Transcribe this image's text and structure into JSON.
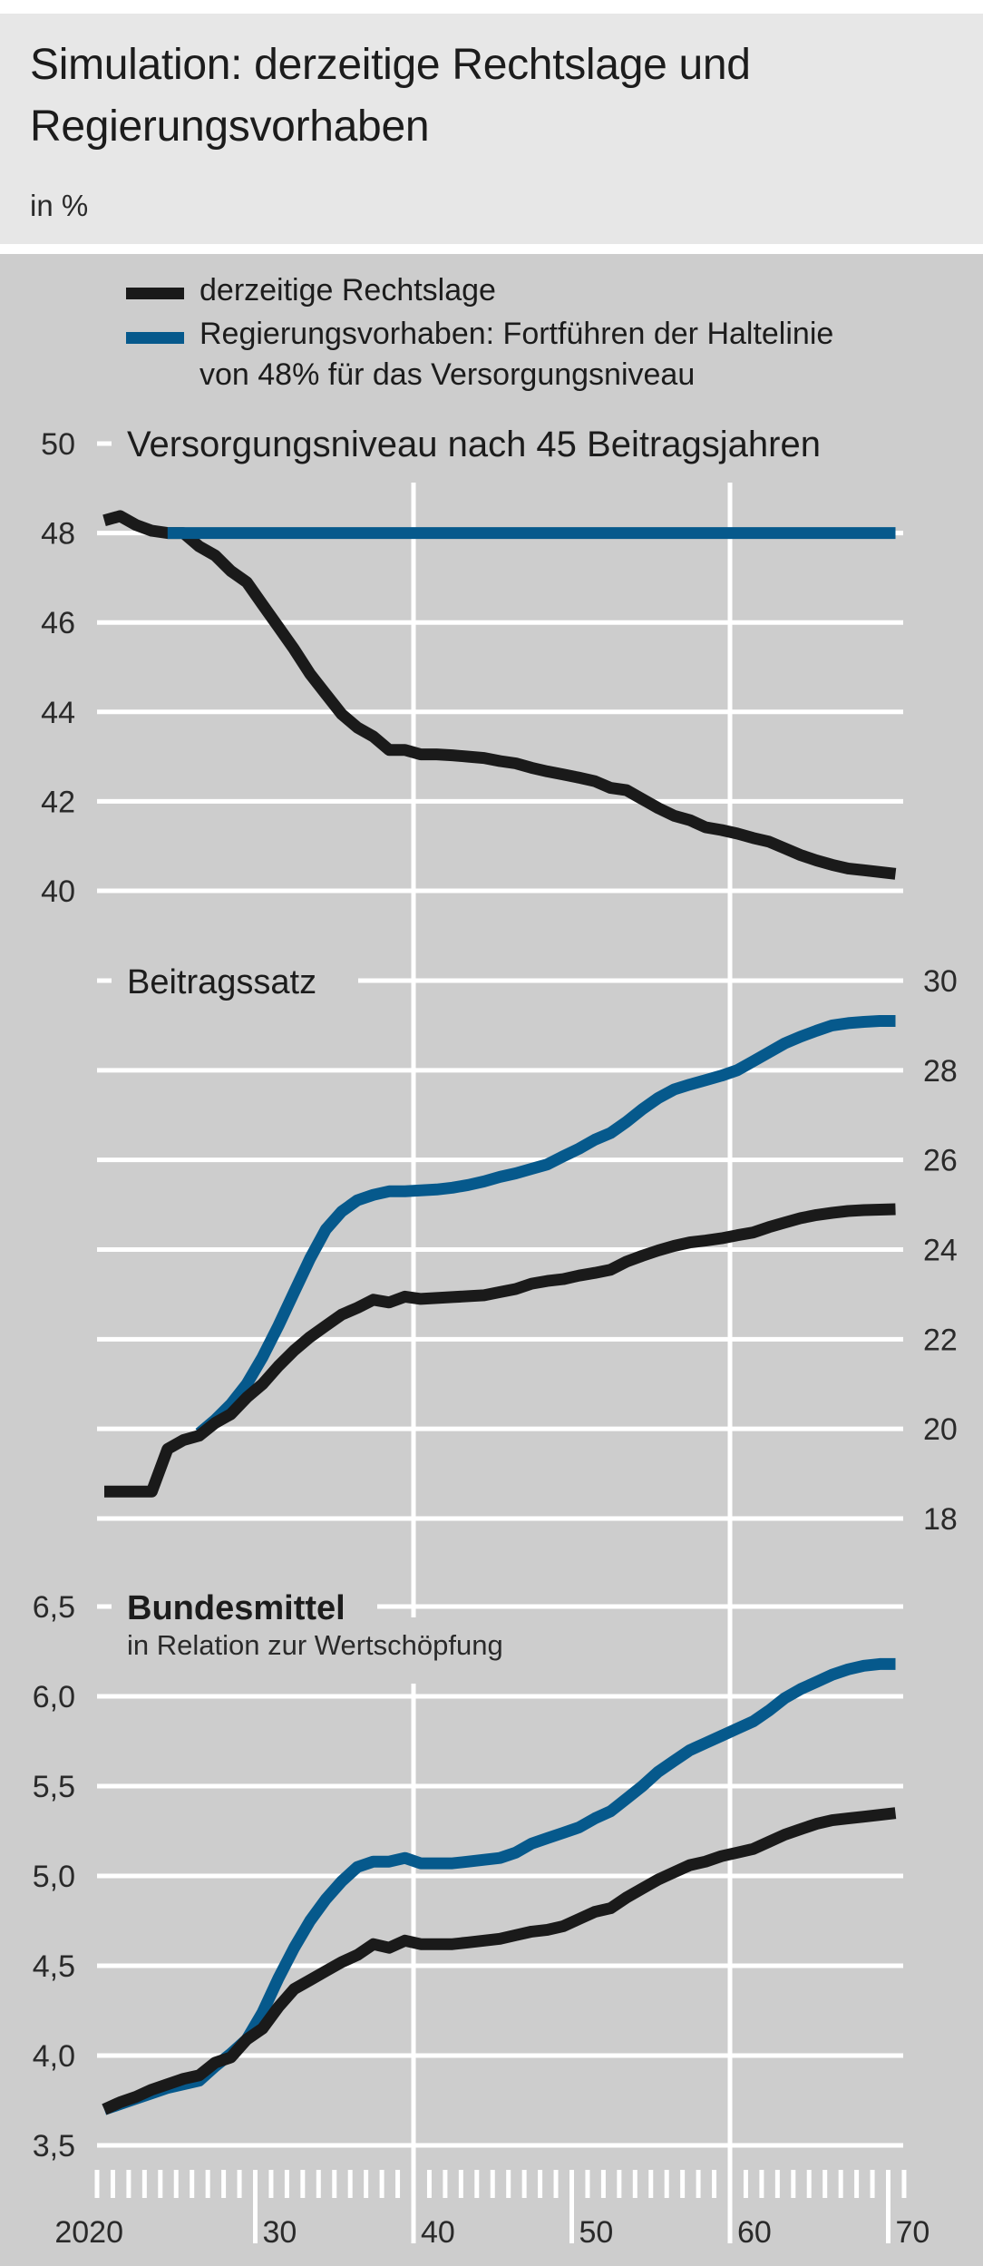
{
  "header": {
    "title": "Simulation: derzeitige Rechtslage und Regierungsvorhaben",
    "unit": "in %"
  },
  "legend": [
    {
      "label": "derzeitige Rechtslage",
      "color": "#1a1a1a"
    },
    {
      "label_line1": "Regierungsvorhaben: Fortführen der Haltelinie",
      "label_line2": "von 48% für das Versorgungsniveau",
      "color": "#06598c"
    }
  ],
  "colors": {
    "current": "#1a1a1a",
    "plan": "#06598c",
    "grid": "#ffffff",
    "plot_bg": "#cdcdcd",
    "header_bg": "#e7e7e7"
  },
  "chart_data": [
    {
      "type": "line",
      "title": "Versorgungsniveau nach 45 Beitragsjahren",
      "ylim": [
        40,
        50
      ],
      "yticks": [
        "40",
        "42",
        "44",
        "46",
        "48",
        "50"
      ],
      "ytick_values": [
        40,
        42,
        44,
        46,
        48,
        50
      ],
      "yaxis_side": "left",
      "x_start": 2020,
      "series": [
        {
          "name": "derzeitige Rechtslage",
          "key": "current",
          "start": 2020,
          "values": [
            48.28,
            48.38,
            48.18,
            48.05,
            48.0,
            48.0,
            47.7,
            47.5,
            47.15,
            46.9,
            46.4,
            45.9,
            45.4,
            44.85,
            44.4,
            43.95,
            43.65,
            43.45,
            43.15,
            43.15,
            43.05,
            43.05,
            43.03,
            43.0,
            42.97,
            42.9,
            42.85,
            42.75,
            42.67,
            42.6,
            42.53,
            42.45,
            42.3,
            42.25,
            42.05,
            41.85,
            41.68,
            41.58,
            41.42,
            41.36,
            41.28,
            41.18,
            41.1,
            40.95,
            40.8,
            40.68,
            40.58,
            40.5,
            40.46,
            40.42,
            40.38
          ]
        },
        {
          "name": "Regierungsvorhaben",
          "key": "plan",
          "start": 2024,
          "values": [
            48.0,
            48.0,
            48.0,
            48.0,
            48.0,
            48.0,
            48.0,
            48.0,
            48.0,
            48.0,
            48.0,
            48.0,
            48.0,
            48.0,
            48.0,
            48.0,
            48.0,
            48.0,
            48.0,
            48.0,
            48.0,
            48.0,
            48.0,
            48.0,
            48.0,
            48.0,
            48.0,
            48.0,
            48.0,
            48.0,
            48.0,
            48.0,
            48.0,
            48.0,
            48.0,
            48.0,
            48.0,
            48.0,
            48.0,
            48.0,
            48.0,
            48.0,
            48.0,
            48.0,
            48.0,
            48.0,
            48.0
          ]
        }
      ]
    },
    {
      "type": "line",
      "title": "Beitragssatz",
      "ylim": [
        18,
        30
      ],
      "yticks": [
        "18",
        "20",
        "22",
        "24",
        "26",
        "28",
        "30"
      ],
      "ytick_values": [
        18,
        20,
        22,
        24,
        26,
        28,
        30
      ],
      "yaxis_side": "right",
      "x_start": 2020,
      "series": [
        {
          "name": "derzeitige Rechtslage",
          "key": "current",
          "start": 2020,
          "values": [
            18.6,
            18.6,
            18.6,
            18.6,
            19.55,
            19.75,
            19.85,
            20.13,
            20.33,
            20.7,
            21.0,
            21.4,
            21.75,
            22.05,
            22.3,
            22.55,
            22.7,
            22.88,
            22.82,
            22.95,
            22.9,
            22.92,
            22.94,
            22.96,
            22.98,
            23.05,
            23.12,
            23.24,
            23.3,
            23.34,
            23.42,
            23.48,
            23.55,
            23.73,
            23.86,
            23.98,
            24.08,
            24.16,
            24.2,
            24.25,
            24.32,
            24.38,
            24.5,
            24.6,
            24.7,
            24.77,
            24.82,
            24.86,
            24.88,
            24.89,
            24.9
          ]
        },
        {
          "name": "Regierungsvorhaben",
          "key": "plan",
          "start": 2026,
          "values": [
            19.9,
            20.2,
            20.55,
            21.0,
            21.6,
            22.3,
            23.05,
            23.8,
            24.45,
            24.85,
            25.1,
            25.22,
            25.3,
            25.3,
            25.32,
            25.34,
            25.38,
            25.44,
            25.52,
            25.62,
            25.7,
            25.8,
            25.9,
            26.08,
            26.25,
            26.45,
            26.6,
            26.85,
            27.13,
            27.38,
            27.57,
            27.68,
            27.78,
            27.88,
            28.0,
            28.2,
            28.4,
            28.6,
            28.75,
            28.88,
            29.0,
            29.05,
            29.08,
            29.1,
            29.1
          ]
        }
      ]
    },
    {
      "type": "line",
      "title": "Bundesmittel",
      "subtitle": "in Relation zur Wertschöpfung",
      "ylim": [
        3.5,
        6.5
      ],
      "yticks": [
        "3,5",
        "4,0",
        "4,5",
        "5,0",
        "5,5",
        "6,0",
        "6,5"
      ],
      "ytick_values": [
        3.5,
        4.0,
        4.5,
        5.0,
        5.5,
        6.0,
        6.5
      ],
      "yaxis_side": "left",
      "x_start": 2020,
      "series": [
        {
          "name": "derzeitige Rechtslage",
          "key": "current",
          "start": 2020,
          "values": [
            3.7,
            3.74,
            3.77,
            3.81,
            3.84,
            3.87,
            3.89,
            3.96,
            3.99,
            4.09,
            4.15,
            4.27,
            4.37,
            4.42,
            4.47,
            4.52,
            4.56,
            4.62,
            4.6,
            4.64,
            4.62,
            4.62,
            4.62,
            4.63,
            4.64,
            4.65,
            4.67,
            4.69,
            4.7,
            4.72,
            4.76,
            4.8,
            4.82,
            4.88,
            4.93,
            4.98,
            5.02,
            5.06,
            5.08,
            5.11,
            5.13,
            5.15,
            5.19,
            5.23,
            5.26,
            5.29,
            5.31,
            5.32,
            5.33,
            5.34,
            5.35
          ]
        },
        {
          "name": "Regierungsvorhaben",
          "key": "plan",
          "start": 2020,
          "values": [
            3.7,
            3.73,
            3.76,
            3.79,
            3.82,
            3.84,
            3.86,
            3.94,
            4.01,
            4.09,
            4.24,
            4.43,
            4.6,
            4.75,
            4.87,
            4.97,
            5.05,
            5.08,
            5.08,
            5.1,
            5.07,
            5.07,
            5.07,
            5.08,
            5.09,
            5.1,
            5.13,
            5.18,
            5.21,
            5.24,
            5.27,
            5.32,
            5.36,
            5.43,
            5.5,
            5.58,
            5.64,
            5.7,
            5.74,
            5.78,
            5.82,
            5.86,
            5.92,
            5.99,
            6.04,
            6.08,
            6.12,
            6.15,
            6.17,
            6.18,
            6.18
          ]
        }
      ]
    }
  ],
  "xaxis": {
    "range": [
      2020,
      2070
    ],
    "labels": [
      {
        "year": 2020,
        "text": "2020"
      },
      {
        "year": 2030,
        "text": "30"
      },
      {
        "year": 2040,
        "text": "40"
      },
      {
        "year": 2050,
        "text": "50"
      },
      {
        "year": 2060,
        "text": "60"
      },
      {
        "year": 2070,
        "text": "70"
      }
    ]
  }
}
